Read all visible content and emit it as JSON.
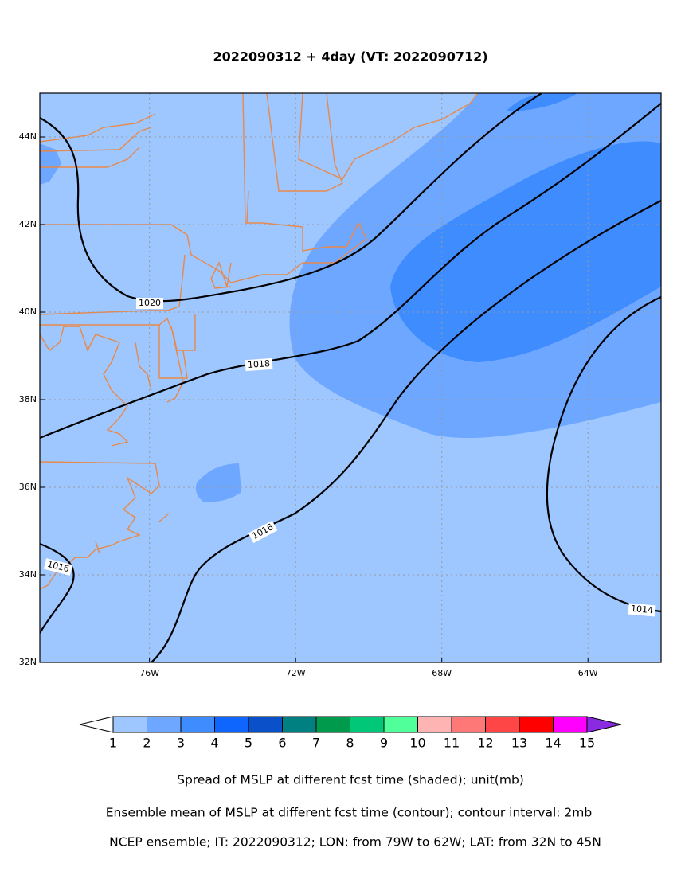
{
  "title": "2022090312 + 4day (VT: 2022090712)",
  "map": {
    "xlim": [
      -79,
      -62
    ],
    "ylim": [
      32,
      45
    ],
    "xticks": [
      {
        "value": -76,
        "label": "76W"
      },
      {
        "value": -72,
        "label": "72W"
      },
      {
        "value": -68,
        "label": "68W"
      },
      {
        "value": -64,
        "label": "64W"
      }
    ],
    "yticks": [
      {
        "value": 32,
        "label": "32N"
      },
      {
        "value": 34,
        "label": "34N"
      },
      {
        "value": 36,
        "label": "36N"
      },
      {
        "value": 38,
        "label": "38N"
      },
      {
        "value": 40,
        "label": "40N"
      },
      {
        "value": 42,
        "label": "42N"
      },
      {
        "value": 44,
        "label": "44N"
      }
    ],
    "grid": true,
    "contour_labels": [
      1020,
      1018,
      1016,
      1016,
      1014
    ]
  },
  "colorbar": {
    "levels": [
      1,
      2,
      3,
      4,
      5,
      6,
      7,
      8,
      9,
      10,
      11,
      12,
      13,
      14,
      15
    ],
    "colors": [
      "#ffffff",
      "#9ec6ff",
      "#6ea7ff",
      "#3f8cff",
      "#0f66ff",
      "#0a50c8",
      "#008080",
      "#009a4c",
      "#00c878",
      "#50ff9a",
      "#ffb4b4",
      "#ff7878",
      "#ff4646",
      "#ff0000",
      "#ff00ff",
      "#8a2be2"
    ]
  },
  "captions": [
    "Spread of MSLP at different fcst time (shaded); unit(mb)",
    "Ensemble mean of MSLP at different fcst time (contour); contour interval: 2mb",
    "NCEP ensemble; IT: 2022090312; LON: from 79W to 62W; LAT: from 32N to 45N"
  ]
}
